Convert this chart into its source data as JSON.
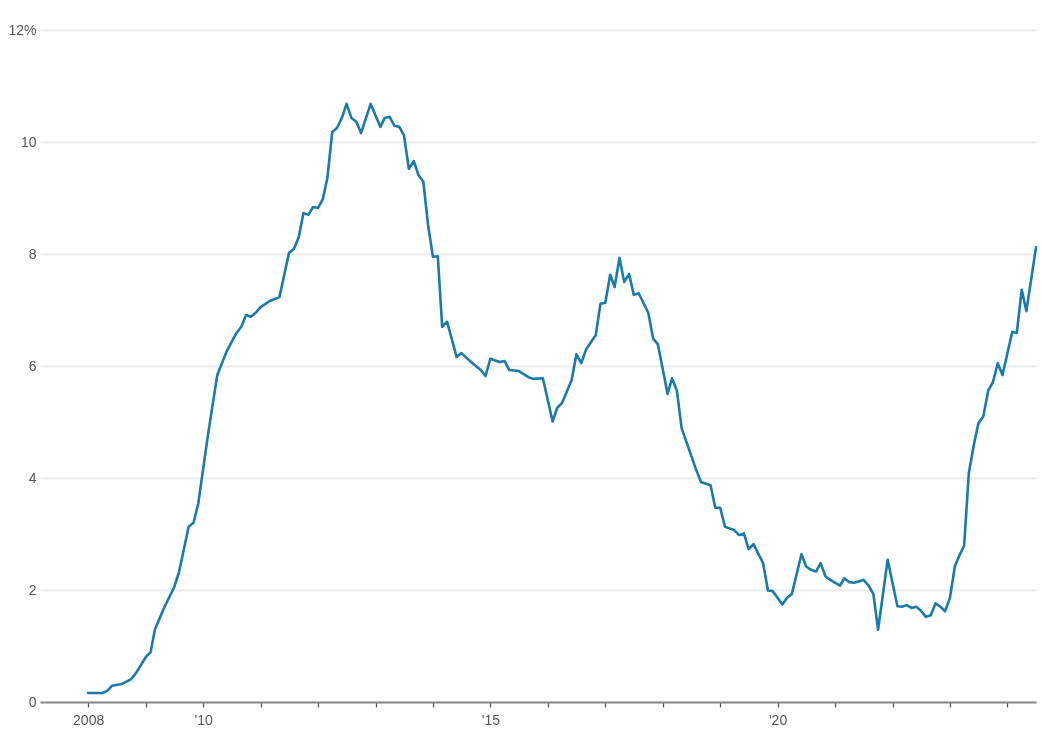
{
  "chart_data": {
    "type": "line",
    "x": [
      "2008-01",
      "2008-04",
      "2008-05",
      "2008-06",
      "2008-08",
      "2008-10",
      "2008-11",
      "2009-01",
      "2009-02",
      "2009-03",
      "2009-05",
      "2009-07",
      "2009-08",
      "2009-10",
      "2009-11",
      "2009-12",
      "2010-02",
      "2010-04",
      "2010-06",
      "2010-08",
      "2010-09",
      "2010-10",
      "2010-11",
      "2010-12",
      "2011-01",
      "2011-03",
      "2011-05",
      "2011-07",
      "2011-08",
      "2011-09",
      "2011-10",
      "2011-11",
      "2011-12",
      "2012-01",
      "2012-02",
      "2012-03",
      "2012-04",
      "2012-05",
      "2012-06",
      "2012-07",
      "2012-08",
      "2012-09",
      "2012-10",
      "2012-12",
      "2013-02",
      "2013-03",
      "2013-04",
      "2013-05",
      "2013-06",
      "2013-07",
      "2013-08",
      "2013-09",
      "2013-10",
      "2013-11",
      "2013-12",
      "2014-01",
      "2014-02",
      "2014-03",
      "2014-04",
      "2014-06",
      "2014-07",
      "2014-09",
      "2014-11",
      "2014-12",
      "2015-01",
      "2015-03",
      "2015-04",
      "2015-05",
      "2015-07",
      "2015-09",
      "2015-10",
      "2015-12",
      "2016-02",
      "2016-03",
      "2016-04",
      "2016-06",
      "2016-07",
      "2016-08",
      "2016-09",
      "2016-11",
      "2016-12",
      "2017-01",
      "2017-02",
      "2017-03",
      "2017-04",
      "2017-05",
      "2017-06",
      "2017-07",
      "2017-08",
      "2017-10",
      "2017-11",
      "2017-12",
      "2018-02",
      "2018-03",
      "2018-04",
      "2018-05",
      "2018-08",
      "2018-09",
      "2018-11",
      "2018-12",
      "2019-01",
      "2019-02",
      "2019-03",
      "2019-04",
      "2019-05",
      "2019-06",
      "2019-07",
      "2019-08",
      "2019-10",
      "2019-11",
      "2019-12",
      "2020-02",
      "2020-03",
      "2020-04",
      "2020-06",
      "2020-07",
      "2020-08",
      "2020-09",
      "2020-10",
      "2020-11",
      "2020-12",
      "2021-02",
      "2021-03",
      "2021-04",
      "2021-05",
      "2021-07",
      "2021-08",
      "2021-09",
      "2021-10",
      "2021-12",
      "2022-02",
      "2022-03",
      "2022-04",
      "2022-05",
      "2022-06",
      "2022-07",
      "2022-08",
      "2022-09",
      "2022-10",
      "2022-11",
      "2022-12",
      "2023-01",
      "2023-02",
      "2023-03",
      "2023-04",
      "2023-05",
      "2023-06",
      "2023-07",
      "2023-08",
      "2023-09",
      "2023-10",
      "2023-11",
      "2023-12",
      "2024-02",
      "2024-03",
      "2024-04",
      "2024-05",
      "2024-07"
    ],
    "series": [
      {
        "color": "#1a7bab",
        "values": [
          0.16,
          0.16,
          0.2,
          0.29,
          0.32,
          0.41,
          0.52,
          0.8,
          0.89,
          1.3,
          1.7,
          2.05,
          2.32,
          3.13,
          3.2,
          3.54,
          4.77,
          5.84,
          6.27,
          6.59,
          6.7,
          6.91,
          6.88,
          6.95,
          7.05,
          7.16,
          7.23,
          8.02,
          8.09,
          8.3,
          8.73,
          8.7,
          8.84,
          8.82,
          8.98,
          9.36,
          10.18,
          10.25,
          10.43,
          10.68,
          10.43,
          10.36,
          10.16,
          10.68,
          10.27,
          10.43,
          10.45,
          10.29,
          10.27,
          10.12,
          9.52,
          9.66,
          9.41,
          9.29,
          8.52,
          7.95,
          7.96,
          6.7,
          6.79,
          6.16,
          6.23,
          6.07,
          5.93,
          5.82,
          6.13,
          6.07,
          6.09,
          5.93,
          5.91,
          5.8,
          5.77,
          5.78,
          5.01,
          5.25,
          5.34,
          5.75,
          6.21,
          6.05,
          6.3,
          6.55,
          7.11,
          7.13,
          7.63,
          7.41,
          7.93,
          7.5,
          7.64,
          7.27,
          7.3,
          6.95,
          6.49,
          6.39,
          5.5,
          5.78,
          5.56,
          4.89,
          4.15,
          3.93,
          3.87,
          3.47,
          3.47,
          3.13,
          3.1,
          3.07,
          2.98,
          3.01,
          2.73,
          2.82,
          2.48,
          1.99,
          1.98,
          1.74,
          1.86,
          1.93,
          2.64,
          2.42,
          2.36,
          2.33,
          2.48,
          2.24,
          2.18,
          2.08,
          2.21,
          2.14,
          2.13,
          2.18,
          2.08,
          1.93,
          1.29,
          2.54,
          1.71,
          1.7,
          1.73,
          1.68,
          1.7,
          1.63,
          1.52,
          1.55,
          1.76,
          1.7,
          1.62,
          1.86,
          2.42,
          2.61,
          2.79,
          4.09,
          4.58,
          4.98,
          5.1,
          5.56,
          5.71,
          6.05,
          5.84,
          6.61,
          6.59,
          7.36,
          6.98,
          8.12
        ]
      }
    ],
    "xlim": [
      "2007-03",
      "2024-07"
    ],
    "xticks": [
      {
        "value": "2008",
        "label": "2008"
      },
      {
        "value": "2009",
        "label": null
      },
      {
        "value": "2010",
        "label": "'10"
      },
      {
        "value": "2011",
        "label": null
      },
      {
        "value": "2012",
        "label": null
      },
      {
        "value": "2013",
        "label": null
      },
      {
        "value": "2014",
        "label": null
      },
      {
        "value": "2015",
        "label": "'15"
      },
      {
        "value": "2016",
        "label": null
      },
      {
        "value": "2017",
        "label": null
      },
      {
        "value": "2018",
        "label": null
      },
      {
        "value": "2019",
        "label": null
      },
      {
        "value": "2020",
        "label": "'20"
      },
      {
        "value": "2021",
        "label": null
      },
      {
        "value": "2022",
        "label": null
      },
      {
        "value": "2023",
        "label": null
      },
      {
        "value": "2024",
        "label": null
      }
    ],
    "ylim": [
      0,
      12
    ],
    "yticks": [
      0,
      2,
      4,
      6,
      8,
      10,
      {
        "value": 12,
        "label": "12%"
      }
    ],
    "grid": "y"
  }
}
